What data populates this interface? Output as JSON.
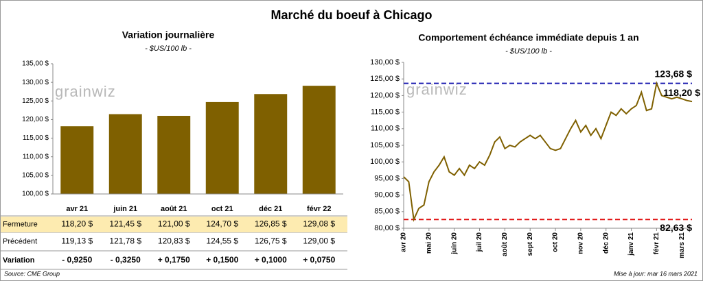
{
  "title": "Marché du boeuf à Chicago",
  "logo": "grainwiz",
  "source": "Source: CME Group",
  "updated": "Mise à jour: mar 16 mars 2021",
  "chart_data": [
    {
      "type": "bar",
      "title": "Variation journalière",
      "subtitle": "- $US/100 lb -",
      "categories": [
        "avr 21",
        "juin 21",
        "août 21",
        "oct 21",
        "déc 21",
        "févr 22"
      ],
      "values": [
        118.2,
        121.45,
        121.0,
        124.7,
        126.85,
        129.08
      ],
      "color": "#7f6000",
      "ylim": [
        100,
        135
      ],
      "yticks": [
        {
          "value": 100,
          "label": "100,00 $"
        },
        {
          "value": 105,
          "label": "105,00 $"
        },
        {
          "value": 110,
          "label": "110,00 $"
        },
        {
          "value": 115,
          "label": "115,00 $"
        },
        {
          "value": 120,
          "label": "120,00 $"
        },
        {
          "value": 125,
          "label": "125,00 $"
        },
        {
          "value": 130,
          "label": "130,00 $"
        },
        {
          "value": 135,
          "label": "135,00 $"
        }
      ],
      "grid": false
    },
    {
      "type": "line",
      "title": "Comportement  échéance immédiate depuis 1 an",
      "subtitle": "- $US/100 lb -",
      "categories": [
        "avr 20",
        null,
        null,
        null,
        null,
        "mai 20",
        null,
        null,
        null,
        null,
        "juin 20",
        null,
        null,
        null,
        null,
        "juil 20",
        null,
        null,
        null,
        null,
        "août 20",
        null,
        null,
        null,
        null,
        "sept 20",
        null,
        null,
        null,
        null,
        "oct 20",
        null,
        null,
        null,
        null,
        "nov 20",
        null,
        null,
        null,
        null,
        "déc 20",
        null,
        null,
        null,
        null,
        "janv 21",
        null,
        null,
        null,
        null,
        "févr 21",
        null,
        null,
        null,
        null,
        "mars 21",
        null,
        null
      ],
      "values": [
        95.5,
        94,
        82.63,
        86,
        87,
        94,
        97,
        99,
        101.5,
        97,
        96,
        98,
        96,
        99,
        98,
        100,
        99,
        102,
        106,
        107.5,
        104,
        105,
        104.5,
        106,
        107,
        108,
        107,
        108,
        106,
        104,
        103.5,
        104,
        107,
        110,
        112.5,
        109,
        111,
        108,
        110,
        107,
        111,
        115,
        114,
        116,
        114.5,
        116,
        117,
        121,
        115.5,
        116,
        123.68,
        120,
        119.5,
        119,
        119.5,
        119,
        118.5,
        118.2
      ],
      "color": "#7f6000",
      "ylim": [
        80,
        130
      ],
      "yticks": [
        {
          "value": 80,
          "label": "80,00 $"
        },
        {
          "value": 85,
          "label": "85,00 $"
        },
        {
          "value": 90,
          "label": "90,00 $"
        },
        {
          "value": 95,
          "label": "95,00 $"
        },
        {
          "value": 100,
          "label": "100,00 $"
        },
        {
          "value": 105,
          "label": "105,00 $"
        },
        {
          "value": 110,
          "label": "110,00 $"
        },
        {
          "value": 115,
          "label": "115,00 $"
        },
        {
          "value": 120,
          "label": "120,00 $"
        },
        {
          "value": 125,
          "label": "125,00 $"
        },
        {
          "value": 130,
          "label": "130,00 $"
        }
      ],
      "reference_lines": [
        {
          "value": 123.68,
          "label": "123,68 $",
          "color": "#1c1cb0"
        },
        {
          "value": 82.63,
          "label": "82,63 $",
          "color": "#e01010"
        }
      ],
      "last_value_label": {
        "value": 118.2,
        "label": "118,20 $"
      }
    }
  ],
  "table": {
    "rows": [
      {
        "label": "Fermeture",
        "cells": [
          "118,20 $",
          "121,45 $",
          "121,00 $",
          "124,70 $",
          "126,85 $",
          "129,08 $"
        ],
        "background": "#fdebb0",
        "label_color": "#c07800",
        "colors": [
          "#7a5800",
          "#7a5800",
          "#7a5800",
          "#7a5800",
          "#7a5800",
          "#7a5800"
        ]
      },
      {
        "label": "Précédent",
        "cells": [
          "119,13 $",
          "121,78 $",
          "120,83 $",
          "124,55 $",
          "126,75 $",
          "129,00 $"
        ],
        "background": "#ffffff",
        "label_color": "#000000",
        "colors": [
          "#000000",
          "#000000",
          "#000000",
          "#000000",
          "#000000",
          "#000000"
        ]
      },
      {
        "label": "Variation",
        "cells": [
          "- 0,9250",
          "- 0,3250",
          "+ 0,1750",
          "+ 0,1500",
          "+ 0,1000",
          "+ 0,0750"
        ],
        "background": "#ffffff",
        "label_color": "#000000",
        "colors": [
          "#e01010",
          "#e01010",
          "#1a8a1a",
          "#1a8a1a",
          "#1a8a1a",
          "#1a8a1a"
        ],
        "bold": true
      }
    ]
  }
}
